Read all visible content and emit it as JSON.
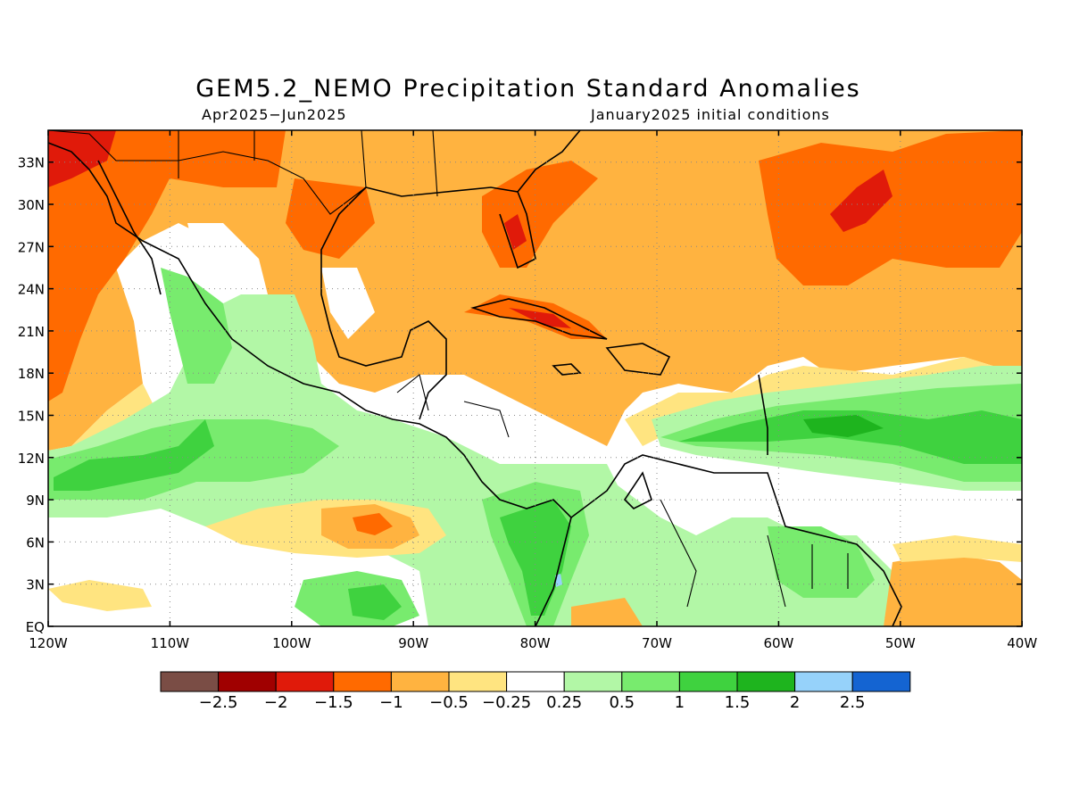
{
  "title": "GEM5.2_NEMO Precipitation Standard Anomalies",
  "period": "Apr2025−Jun2025",
  "init": "January2025 initial conditions",
  "axes": {
    "lat_labels": [
      "EQ",
      "3N",
      "6N",
      "9N",
      "12N",
      "15N",
      "18N",
      "21N",
      "24N",
      "27N",
      "30N",
      "33N"
    ],
    "lon_labels": [
      "120W",
      "110W",
      "100W",
      "90W",
      "80W",
      "70W",
      "60W",
      "50W",
      "40W"
    ]
  },
  "colorbar": {
    "colors": [
      "#7a4d45",
      "#a00000",
      "#e01a0a",
      "#ff6a00",
      "#ffb340",
      "#ffe480",
      "#ffffff",
      "#b2f7a6",
      "#78eb6e",
      "#3fd23f",
      "#1eb41e",
      "#96d2fa",
      "#1464d2"
    ],
    "labels": [
      "−2.5",
      "−2",
      "−1.5",
      "−1",
      "−0.5",
      "−0.25",
      "0.25",
      "0.5",
      "1",
      "1.5",
      "2",
      "2.5"
    ]
  },
  "map_colors": {
    "dark_red": "#e01a0a",
    "orange": "#ff6a00",
    "light_orange": "#ffb340",
    "yellow": "#ffe480",
    "light_green": "#b2f7a6",
    "green": "#78eb6e",
    "dark_green": "#3fd23f",
    "darker_green": "#1eb41e",
    "light_blue": "#96d2fa"
  }
}
